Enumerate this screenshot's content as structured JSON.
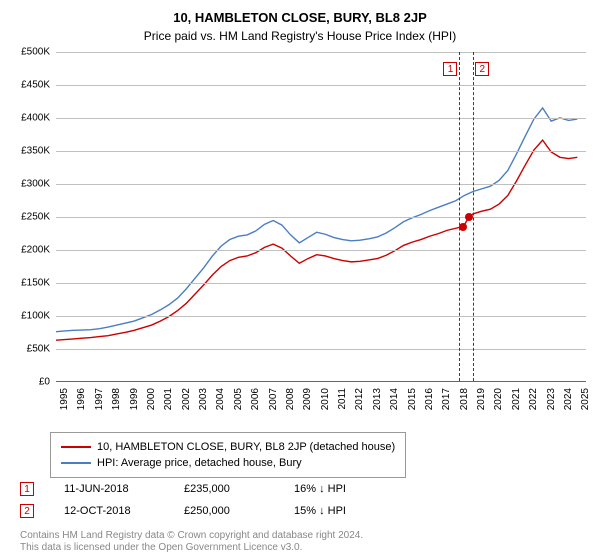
{
  "title": "10, HAMBLETON CLOSE, BURY, BL8 2JP",
  "subtitle": "Price paid vs. HM Land Registry's House Price Index (HPI)",
  "chart": {
    "type": "line",
    "ylim": [
      0,
      500000
    ],
    "ytick_step": 50000,
    "y_labels": [
      "£0",
      "£50K",
      "£100K",
      "£150K",
      "£200K",
      "£250K",
      "£300K",
      "£350K",
      "£400K",
      "£450K",
      "£500K"
    ],
    "x_start": 1995,
    "x_end": 2025.5,
    "x_labels": [
      "1995",
      "1996",
      "1997",
      "1998",
      "1999",
      "2000",
      "2001",
      "2002",
      "2003",
      "2004",
      "2005",
      "2006",
      "2007",
      "2008",
      "2009",
      "2010",
      "2011",
      "2012",
      "2013",
      "2014",
      "2015",
      "2016",
      "2017",
      "2018",
      "2019",
      "2020",
      "2021",
      "2022",
      "2023",
      "2024",
      "2025"
    ],
    "grid_color": "#c0c0c0",
    "background_color": "#ffffff",
    "series": [
      {
        "name": "hpi",
        "color": "#4a7ec4",
        "width": 1.4,
        "points": [
          [
            1995,
            75000
          ],
          [
            1995.5,
            76000
          ],
          [
            1996,
            77000
          ],
          [
            1996.5,
            77500
          ],
          [
            1997,
            78000
          ],
          [
            1997.5,
            79500
          ],
          [
            1998,
            82000
          ],
          [
            1998.5,
            85000
          ],
          [
            1999,
            88000
          ],
          [
            1999.5,
            91000
          ],
          [
            2000,
            96000
          ],
          [
            2000.5,
            101000
          ],
          [
            2001,
            108000
          ],
          [
            2001.5,
            116000
          ],
          [
            2002,
            126000
          ],
          [
            2002.5,
            140000
          ],
          [
            2003,
            156000
          ],
          [
            2003.5,
            172000
          ],
          [
            2004,
            190000
          ],
          [
            2004.5,
            205000
          ],
          [
            2005,
            215000
          ],
          [
            2005.5,
            220000
          ],
          [
            2006,
            222000
          ],
          [
            2006.5,
            228000
          ],
          [
            2007,
            238000
          ],
          [
            2007.5,
            244000
          ],
          [
            2008,
            237000
          ],
          [
            2008.5,
            222000
          ],
          [
            2009,
            210000
          ],
          [
            2009.5,
            218000
          ],
          [
            2010,
            226000
          ],
          [
            2010.5,
            223000
          ],
          [
            2011,
            218000
          ],
          [
            2011.5,
            215000
          ],
          [
            2012,
            213000
          ],
          [
            2012.5,
            214000
          ],
          [
            2013,
            216000
          ],
          [
            2013.5,
            219000
          ],
          [
            2014,
            225000
          ],
          [
            2014.5,
            233000
          ],
          [
            2015,
            242000
          ],
          [
            2015.5,
            248000
          ],
          [
            2016,
            253000
          ],
          [
            2016.5,
            259000
          ],
          [
            2017,
            264000
          ],
          [
            2017.5,
            269000
          ],
          [
            2018,
            274000
          ],
          [
            2018.5,
            282000
          ],
          [
            2019,
            288000
          ],
          [
            2019.5,
            292000
          ],
          [
            2020,
            296000
          ],
          [
            2020.5,
            305000
          ],
          [
            2021,
            320000
          ],
          [
            2021.5,
            345000
          ],
          [
            2022,
            372000
          ],
          [
            2022.5,
            398000
          ],
          [
            2023,
            415000
          ],
          [
            2023.5,
            395000
          ],
          [
            2024,
            400000
          ],
          [
            2024.5,
            396000
          ],
          [
            2025,
            398000
          ]
        ]
      },
      {
        "name": "property",
        "color": "#cc0000",
        "width": 1.4,
        "points": [
          [
            1995,
            62000
          ],
          [
            1995.5,
            63000
          ],
          [
            1996,
            64000
          ],
          [
            1996.5,
            65000
          ],
          [
            1997,
            66000
          ],
          [
            1997.5,
            67500
          ],
          [
            1998,
            69000
          ],
          [
            1998.5,
            71500
          ],
          [
            1999,
            74000
          ],
          [
            1999.5,
            77000
          ],
          [
            2000,
            81000
          ],
          [
            2000.5,
            85000
          ],
          [
            2001,
            91000
          ],
          [
            2001.5,
            98000
          ],
          [
            2002,
            107000
          ],
          [
            2002.5,
            118000
          ],
          [
            2003,
            132000
          ],
          [
            2003.5,
            146000
          ],
          [
            2004,
            161000
          ],
          [
            2004.5,
            174000
          ],
          [
            2005,
            183000
          ],
          [
            2005.5,
            188000
          ],
          [
            2006,
            190000
          ],
          [
            2006.5,
            195000
          ],
          [
            2007,
            203000
          ],
          [
            2007.5,
            208000
          ],
          [
            2008,
            202000
          ],
          [
            2008.5,
            190000
          ],
          [
            2009,
            179000
          ],
          [
            2009.5,
            186000
          ],
          [
            2010,
            192000
          ],
          [
            2010.5,
            190000
          ],
          [
            2011,
            186000
          ],
          [
            2011.5,
            183000
          ],
          [
            2012,
            181000
          ],
          [
            2012.5,
            182000
          ],
          [
            2013,
            184000
          ],
          [
            2013.5,
            186000
          ],
          [
            2014,
            191000
          ],
          [
            2014.5,
            198000
          ],
          [
            2015,
            206000
          ],
          [
            2015.5,
            211000
          ],
          [
            2016,
            215000
          ],
          [
            2016.5,
            220000
          ],
          [
            2017,
            224000
          ],
          [
            2017.5,
            229000
          ],
          [
            2018.45,
            235000
          ],
          [
            2018.78,
            250000
          ],
          [
            2019,
            254000
          ],
          [
            2019.5,
            258000
          ],
          [
            2020,
            261000
          ],
          [
            2020.5,
            269000
          ],
          [
            2021,
            282000
          ],
          [
            2021.5,
            304000
          ],
          [
            2022,
            328000
          ],
          [
            2022.5,
            351000
          ],
          [
            2023,
            366000
          ],
          [
            2023.5,
            348000
          ],
          [
            2024,
            340000
          ],
          [
            2024.5,
            338000
          ],
          [
            2025,
            340000
          ]
        ]
      }
    ],
    "sale_markers": [
      {
        "x": 2018.45,
        "y": 235000,
        "label": "1",
        "color": "#cc0000"
      },
      {
        "x": 2018.78,
        "y": 250000,
        "label": "2",
        "color": "#cc0000"
      }
    ],
    "marker_band": {
      "start": 2018.2,
      "end": 2019.05,
      "color": "#cc0000"
    },
    "legend": [
      {
        "color": "#cc0000",
        "label": "10, HAMBLETON CLOSE, BURY, BL8 2JP (detached house)"
      },
      {
        "color": "#4a7ec4",
        "label": "HPI: Average price, detached house, Bury"
      }
    ]
  },
  "transactions": [
    {
      "num": "1",
      "color": "#cc0000",
      "date": "11-JUN-2018",
      "price": "£235,000",
      "diff": "16% ↓ HPI"
    },
    {
      "num": "2",
      "color": "#cc0000",
      "date": "12-OCT-2018",
      "price": "£250,000",
      "diff": "15% ↓ HPI"
    }
  ],
  "attribution": {
    "line1": "Contains HM Land Registry data © Crown copyright and database right 2024.",
    "line2": "This data is licensed under the Open Government Licence v3.0."
  }
}
